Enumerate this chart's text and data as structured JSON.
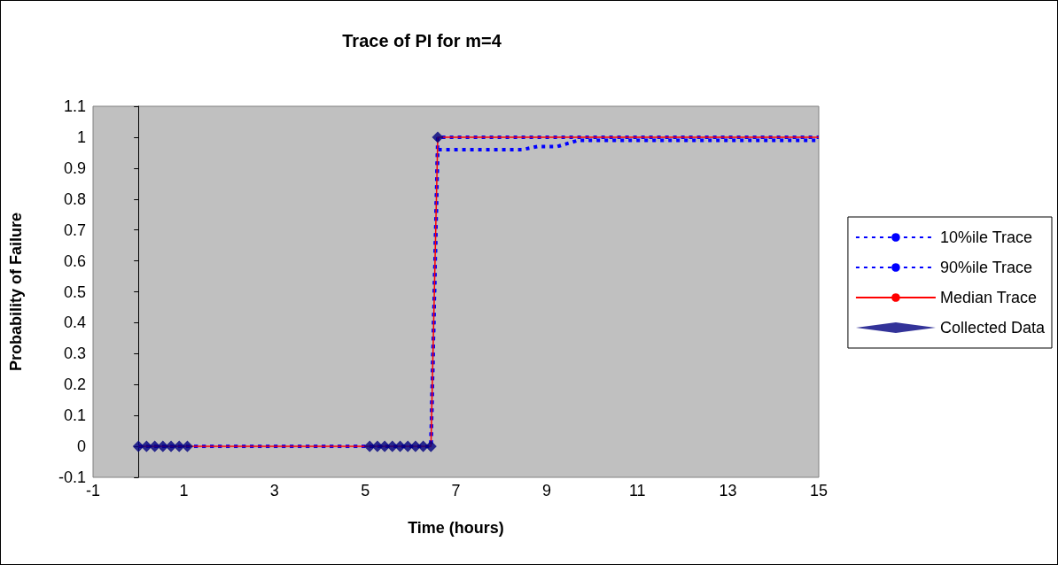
{
  "chart_data": {
    "type": "line",
    "title": "Trace of PI for m=4",
    "xlabel": "Time (hours)",
    "ylabel": "Probability of Failure",
    "xlim": [
      -1,
      15
    ],
    "xticks": [
      -1,
      1,
      3,
      5,
      7,
      9,
      11,
      13,
      15
    ],
    "ylim": [
      -0.1,
      1.1
    ],
    "yticks": [
      -0.1,
      0,
      0.1,
      0.2,
      0.3,
      0.4,
      0.5,
      0.6,
      0.7,
      0.8,
      0.9,
      1,
      1.1
    ],
    "grid": false,
    "legend": "right",
    "series": [
      {
        "name": "10%ile Trace",
        "color": "#0000ff",
        "line_style": "dashed",
        "marker": "none",
        "x": [
          0,
          6.45,
          6.6,
          8.47,
          8.8,
          9.24,
          9.7,
          15
        ],
        "values": [
          0,
          0,
          0.96,
          0.96,
          0.97,
          0.97,
          0.99,
          0.99
        ]
      },
      {
        "name": "90%ile Trace",
        "color": "#0000ff",
        "line_style": "dashed",
        "marker": "none",
        "x": [
          0,
          6.45,
          6.6,
          15
        ],
        "values": [
          0,
          0,
          1,
          1
        ]
      },
      {
        "name": "Median Trace",
        "color": "#ff0000",
        "line_style": "solid",
        "marker": "none",
        "x": [
          0,
          6.45,
          6.6,
          15
        ],
        "values": [
          0,
          0,
          1,
          1
        ]
      },
      {
        "name": "Collected Data",
        "type": "scatter",
        "color": "#000080",
        "marker": "diamond",
        "x": [
          0,
          0.18,
          0.36,
          0.54,
          0.72,
          0.9,
          1.08,
          5.1,
          5.27,
          5.43,
          5.6,
          5.77,
          5.94,
          6.11,
          6.28,
          6.45,
          6.6
        ],
        "values": [
          0,
          0,
          0,
          0,
          0,
          0,
          0,
          0,
          0,
          0,
          0,
          0,
          0,
          0,
          0,
          0,
          1
        ]
      }
    ]
  }
}
